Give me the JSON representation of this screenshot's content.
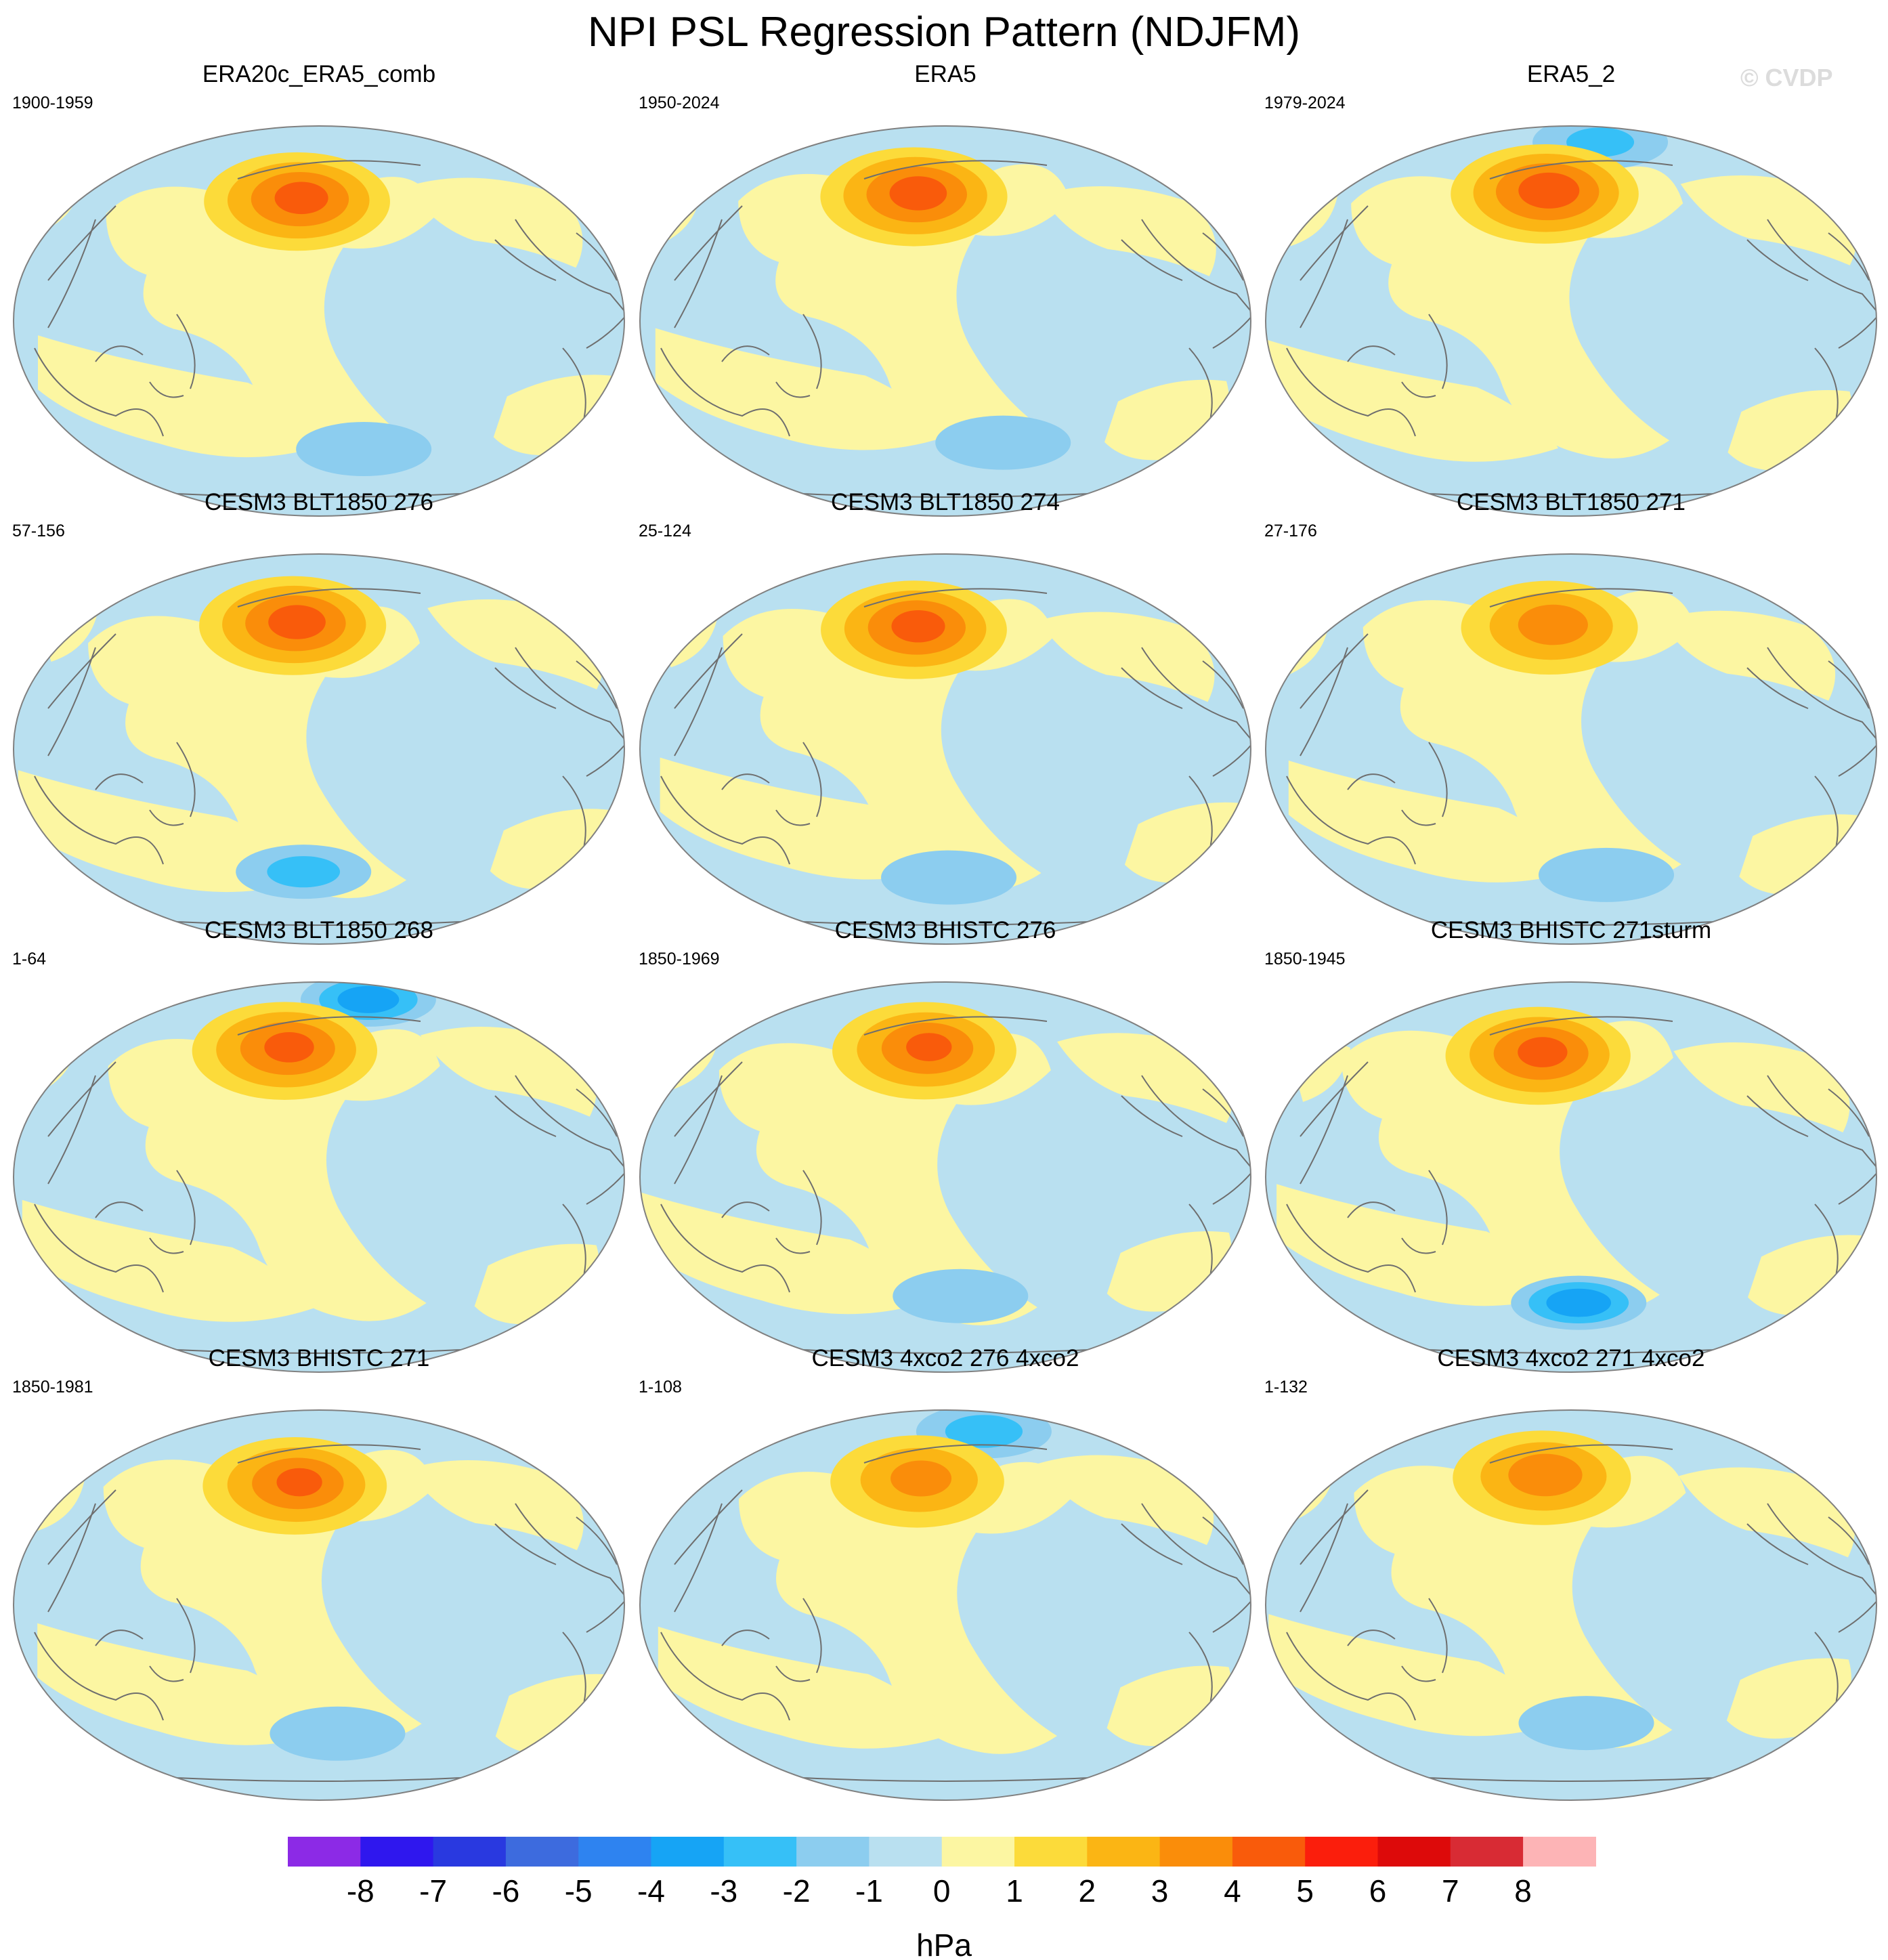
{
  "figure": {
    "title": "NPI PSL Regression Pattern (NDJFM)",
    "watermark": "© CVDP"
  },
  "colors": {
    "land_outline": "#6e6e6e",
    "map_border": "#808080"
  },
  "chart_data": {
    "type": "map-grid",
    "variable": "PSL regression on NPI",
    "season": "NDJFM",
    "units": "hPa",
    "panels": [
      {
        "title": "ERA20c_ERA5_comb",
        "period": "1900-1959",
        "max_anomaly": 4.6,
        "min_anomaly": -1.5
      },
      {
        "title": "ERA5",
        "period": "1950-2024",
        "max_anomaly": 4.7,
        "min_anomaly": -1.6
      },
      {
        "title": "ERA5_2",
        "period": "1979-2024",
        "max_anomaly": 4.8,
        "min_anomaly": -2.2
      },
      {
        "title": "CESM3 BLT1850 276",
        "period": "57-156",
        "max_anomaly": 4.7,
        "min_anomaly": -2.3
      },
      {
        "title": "CESM3 BLT1850 274",
        "period": "25-124",
        "max_anomaly": 4.6,
        "min_anomaly": -1.8
      },
      {
        "title": "CESM3 BLT1850 271",
        "period": "27-176",
        "max_anomaly": 3.8,
        "min_anomaly": -1.8
      },
      {
        "title": "CESM3 BLT1850 268",
        "period": "1-64",
        "max_anomaly": 4.5,
        "min_anomaly": -3.2
      },
      {
        "title": "CESM3 BHISTC 276",
        "period": "1850-1969",
        "max_anomaly": 4.4,
        "min_anomaly": -1.9
      },
      {
        "title": "CESM3 BHISTC 271sturm",
        "period": "1850-1945",
        "max_anomaly": 4.5,
        "min_anomaly": -3.3
      },
      {
        "title": "CESM3 BHISTC 271",
        "period": "1850-1981",
        "max_anomaly": 4.4,
        "min_anomaly": -1.8
      },
      {
        "title": "CESM3 4xco2 276 4xco2",
        "period": "1-108",
        "max_anomaly": 3.6,
        "min_anomaly": -2.4
      },
      {
        "title": "CESM3 4xco2 271 4xco2",
        "period": "1-132",
        "max_anomaly": 3.9,
        "min_anomaly": -1.8
      }
    ],
    "colorbar": {
      "label": "hPa",
      "levels": [
        -8,
        -7,
        -6,
        -5,
        -4,
        -3,
        -2,
        -1,
        0,
        1,
        2,
        3,
        4,
        5,
        6,
        7,
        8
      ],
      "tick_labels": [
        "-8",
        "-7",
        "-6",
        "-5",
        "-4",
        "-3",
        "-2",
        "-1",
        "0",
        "1",
        "2",
        "3",
        "4",
        "5",
        "6",
        "7",
        "8"
      ],
      "colors": [
        "#8c2ae6",
        "#2f17ee",
        "#2939e0",
        "#3d6bde",
        "#2e83f0",
        "#16a4f5",
        "#36c0f7",
        "#8ccdef",
        "#b9e0f0",
        "#fcf6a2",
        "#fcdb3a",
        "#fbb514",
        "#fa8d0a",
        "#f95b0b",
        "#fb1e0c",
        "#dd0a0a",
        "#d82b34",
        "#fdb4b6"
      ]
    }
  }
}
